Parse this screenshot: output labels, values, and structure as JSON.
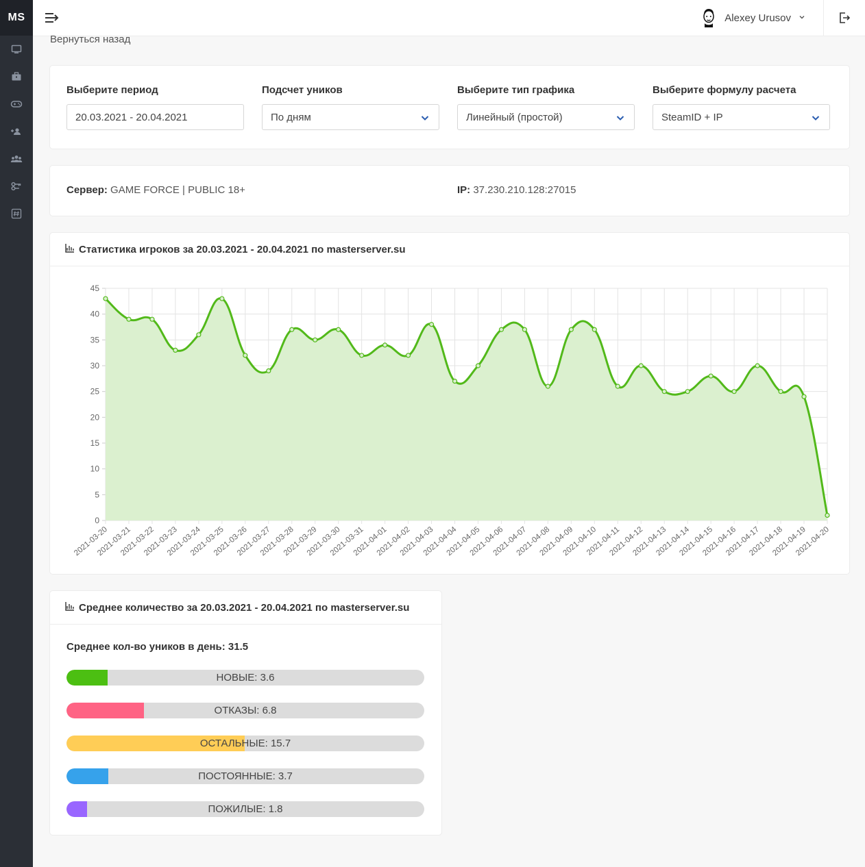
{
  "app": {
    "logo": "MS"
  },
  "sidebar": {
    "items": [
      {
        "icon": "monitor-icon"
      },
      {
        "icon": "briefcase-icon"
      },
      {
        "icon": "gamepad-icon"
      },
      {
        "icon": "user-plus-icon"
      },
      {
        "icon": "users-icon"
      },
      {
        "icon": "keys-icon"
      },
      {
        "icon": "hash-icon"
      }
    ]
  },
  "header": {
    "user_name": "Alexey Urusov"
  },
  "back_link": "Вернуться назад",
  "filters": [
    {
      "label": "Выберите период",
      "value": "20.03.2021 - 20.04.2021",
      "type": "input"
    },
    {
      "label": "Подсчет уников",
      "value": "По дням",
      "type": "select"
    },
    {
      "label": "Выберите тип графика",
      "value": "Линейный (простой)",
      "type": "select"
    },
    {
      "label": "Выберите формулу расчета",
      "value": "SteamID + IP",
      "type": "select"
    }
  ],
  "server_info": {
    "server_label": "Сервер:",
    "server_value": "GAME FORCE | PUBLIC 18+",
    "ip_label": "IP:",
    "ip_value": "37.230.210.128:27015"
  },
  "stats_card": {
    "title": "Статистика игроков за 20.03.2021 - 20.04.2021 по masterserver.su"
  },
  "chart_data": {
    "type": "line",
    "x": [
      "2021-03-20",
      "2021-03-21",
      "2021-03-22",
      "2021-03-23",
      "2021-03-24",
      "2021-03-25",
      "2021-03-26",
      "2021-03-27",
      "2021-03-28",
      "2021-03-29",
      "2021-03-30",
      "2021-03-31",
      "2021-04-01",
      "2021-04-02",
      "2021-04-03",
      "2021-04-04",
      "2021-04-05",
      "2021-04-06",
      "2021-04-07",
      "2021-04-08",
      "2021-04-09",
      "2021-04-10",
      "2021-04-11",
      "2021-04-12",
      "2021-04-13",
      "2021-04-14",
      "2021-04-15",
      "2021-04-16",
      "2021-04-17",
      "2021-04-18",
      "2021-04-19",
      "2021-04-20"
    ],
    "series": [
      {
        "values": [
          43,
          39,
          39,
          33,
          36,
          43,
          32,
          29,
          37,
          35,
          37,
          32,
          34,
          32,
          38,
          27,
          30,
          37,
          37,
          26,
          37,
          37,
          26,
          30,
          25,
          25,
          28,
          25,
          30,
          25,
          24,
          1
        ],
        "color": "#52b91a",
        "fill": "#dbf0cf"
      }
    ],
    "ylim": [
      0,
      45
    ],
    "yticks": [
      0,
      5,
      10,
      15,
      20,
      25,
      30,
      35,
      40,
      45
    ],
    "grid": true,
    "smooth": true
  },
  "avg_card": {
    "title": "Среднее количество за 20.03.2021 - 20.04.2021 по masterserver.su",
    "summary": "Среднее кол-во уников в день: 31.5",
    "bars": [
      {
        "label": "НОВЫЕ: 3.6",
        "fraction": 0.115,
        "color": "#4cbf12"
      },
      {
        "label": "ОТКАЗЫ: 6.8",
        "fraction": 0.216,
        "color": "#ff6384"
      },
      {
        "label": "ОСТАЛЬНЫЕ: 15.7",
        "fraction": 0.498,
        "color": "#ffcd56"
      },
      {
        "label": "ПОСТОЯННЫЕ: 3.7",
        "fraction": 0.117,
        "color": "#36a2eb"
      },
      {
        "label": "ПОЖИЛЫЕ: 1.8",
        "fraction": 0.057,
        "color": "#9966ff"
      }
    ]
  }
}
